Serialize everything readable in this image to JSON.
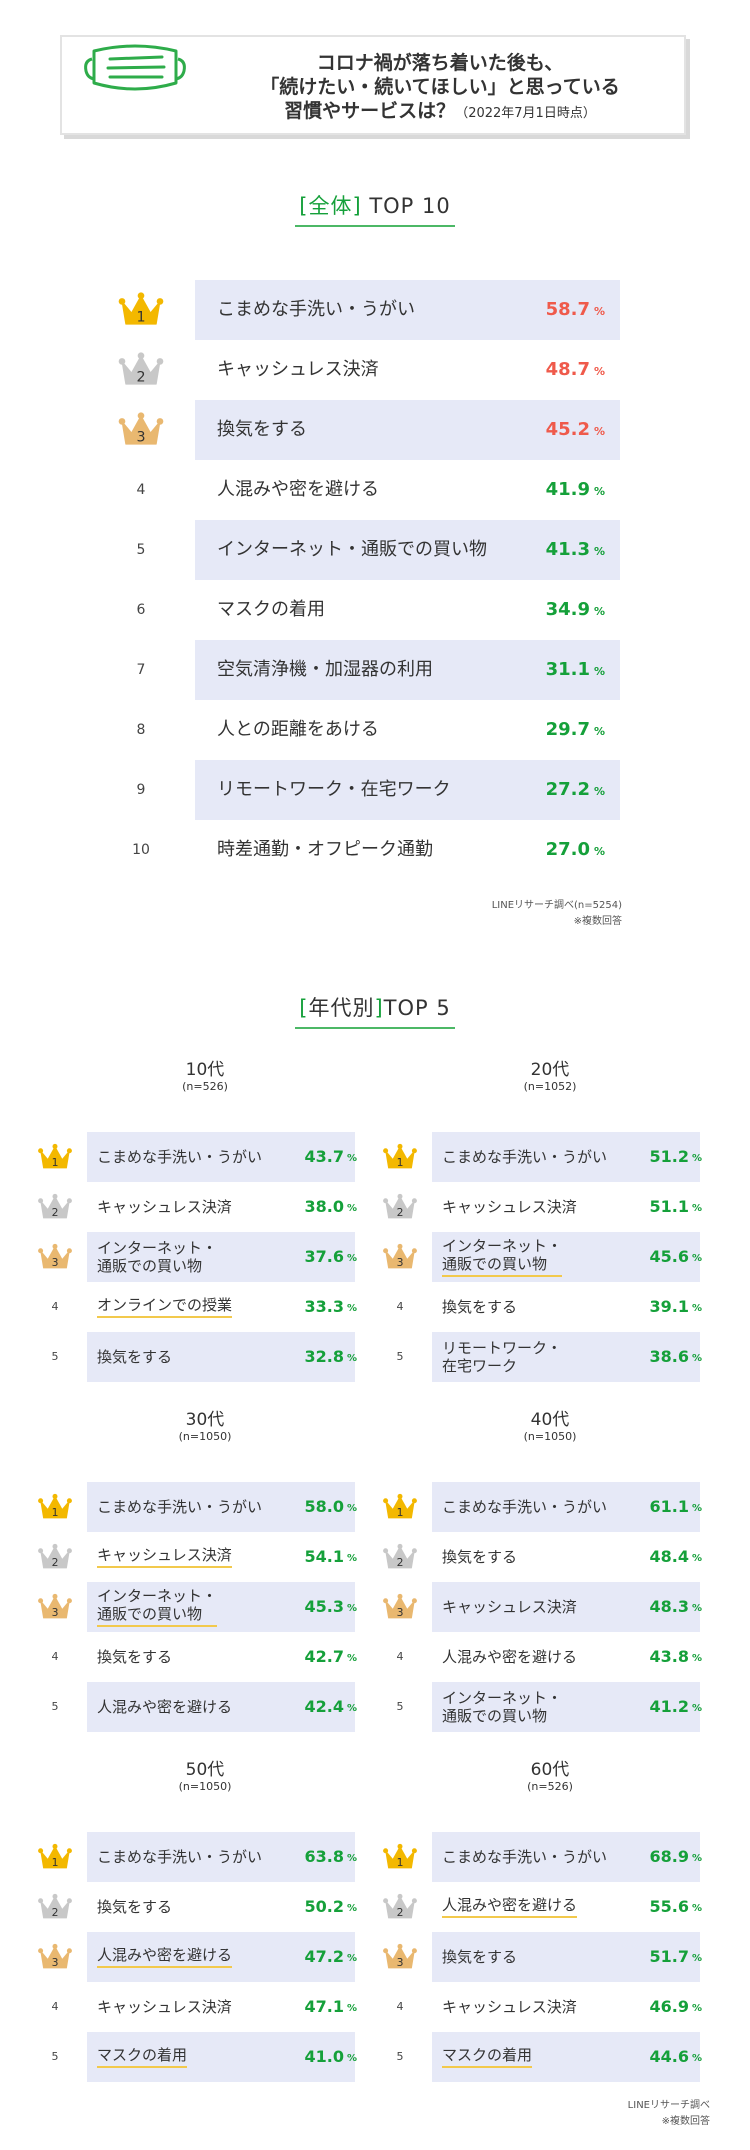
{
  "header": {
    "line1": "コロナ禍が落ち着いた後も、",
    "line2": "「続けたい・続いてほしい」と思っている",
    "line3_main": "習慣やサービスは？",
    "line3_small": "（2022年7月1日時点）"
  },
  "overall": {
    "title_bracket": "[全体]",
    "title_rest": " TOP 10",
    "note_source": "LINEリサーチ調べ(n=5254)",
    "note_multi": "※複数回答"
  },
  "by_age": {
    "title_bracket_open": "[",
    "title_word": "年代別",
    "title_bracket_close": "]",
    "title_rest": "TOP 5",
    "note_source": "LINEリサーチ調べ",
    "note_multi": "※複数回答"
  },
  "pct_unit": "%",
  "colors": {
    "accent_green": "#15a03a",
    "top_red": "#ef5a4b",
    "bar_bg": "#e6e9f7",
    "gold": "#f3b800",
    "silver": "#c8c8c8",
    "bronze": "#e9b870"
  },
  "chart_data": [
    {
      "type": "bar",
      "title": "[全体] TOP 10",
      "n": "n=5254",
      "categories": [
        "こまめな手洗い・うがい",
        "キャッシュレス決済",
        "換気をする",
        "人混みや密を避ける",
        "インターネット・通販での買い物",
        "マスクの着用",
        "空気清浄機・加湿器の利用",
        "人との距離をあける",
        "リモートワーク・在宅ワーク",
        "時差通勤・オフピーク通勤"
      ],
      "ranks": [
        "1",
        "2",
        "3",
        "4",
        "5",
        "6",
        "7",
        "8",
        "9",
        "10"
      ],
      "values": [
        58.7,
        48.7,
        45.2,
        41.9,
        41.3,
        34.9,
        31.1,
        29.7,
        27.2,
        27.0
      ],
      "labels": [
        "58.7",
        "48.7",
        "45.2",
        "41.9",
        "41.3",
        "34.9",
        "31.1",
        "29.7",
        "27.2",
        "27.0"
      ]
    },
    {
      "type": "bar",
      "title": "10代",
      "n": "(n=526)",
      "categories": [
        "こまめな手洗い・うがい",
        "キャッシュレス決済",
        "インターネット・\n通販での買い物",
        "オンラインでの授業",
        "換気をする"
      ],
      "highlight": [
        false,
        false,
        false,
        true,
        false
      ],
      "ranks": [
        "1",
        "2",
        "3",
        "4",
        "5"
      ],
      "values": [
        43.7,
        38.0,
        37.6,
        33.3,
        32.8
      ],
      "labels": [
        "43.7",
        "38.0",
        "37.6",
        "33.3",
        "32.8"
      ]
    },
    {
      "type": "bar",
      "title": "20代",
      "n": "(n=1052)",
      "categories": [
        "こまめな手洗い・うがい",
        "キャッシュレス決済",
        "インターネット・\n通販での買い物",
        "換気をする",
        "リモートワーク・\n在宅ワーク"
      ],
      "highlight": [
        false,
        false,
        true,
        false,
        false
      ],
      "ranks": [
        "1",
        "2",
        "3",
        "4",
        "5"
      ],
      "values": [
        51.2,
        51.1,
        45.6,
        39.1,
        38.6
      ],
      "labels": [
        "51.2",
        "51.1",
        "45.6",
        "39.1",
        "38.6"
      ]
    },
    {
      "type": "bar",
      "title": "30代",
      "n": "(n=1050)",
      "categories": [
        "こまめな手洗い・うがい",
        "キャッシュレス決済",
        "インターネット・\n通販での買い物",
        "換気をする",
        "人混みや密を避ける"
      ],
      "highlight": [
        false,
        true,
        true,
        false,
        false
      ],
      "ranks": [
        "1",
        "2",
        "3",
        "4",
        "5"
      ],
      "values": [
        58.0,
        54.1,
        45.3,
        42.7,
        42.4
      ],
      "labels": [
        "58.0",
        "54.1",
        "45.3",
        "42.7",
        "42.4"
      ]
    },
    {
      "type": "bar",
      "title": "40代",
      "n": "(n=1050)",
      "categories": [
        "こまめな手洗い・うがい",
        "換気をする",
        "キャッシュレス決済",
        "人混みや密を避ける",
        "インターネット・\n通販での買い物"
      ],
      "highlight": [
        false,
        false,
        false,
        false,
        false
      ],
      "ranks": [
        "1",
        "2",
        "3",
        "4",
        "5"
      ],
      "values": [
        61.1,
        48.4,
        48.3,
        43.8,
        41.2
      ],
      "labels": [
        "61.1",
        "48.4",
        "48.3",
        "43.8",
        "41.2"
      ]
    },
    {
      "type": "bar",
      "title": "50代",
      "n": "(n=1050)",
      "categories": [
        "こまめな手洗い・うがい",
        "換気をする",
        "人混みや密を避ける",
        "キャッシュレス決済",
        "マスクの着用"
      ],
      "highlight": [
        false,
        false,
        true,
        false,
        true
      ],
      "ranks": [
        "1",
        "2",
        "3",
        "4",
        "5"
      ],
      "values": [
        63.8,
        50.2,
        47.2,
        47.1,
        41.0
      ],
      "labels": [
        "63.8",
        "50.2",
        "47.2",
        "47.1",
        "41.0"
      ]
    },
    {
      "type": "bar",
      "title": "60代",
      "n": "(n=526)",
      "categories": [
        "こまめな手洗い・うがい",
        "人混みや密を避ける",
        "換気をする",
        "キャッシュレス決済",
        "マスクの着用"
      ],
      "highlight": [
        false,
        true,
        false,
        false,
        true
      ],
      "ranks": [
        "1",
        "2",
        "3",
        "4",
        "5"
      ],
      "values": [
        68.9,
        55.6,
        51.7,
        46.9,
        44.6
      ],
      "labels": [
        "68.9",
        "55.6",
        "51.7",
        "46.9",
        "44.6"
      ]
    }
  ]
}
